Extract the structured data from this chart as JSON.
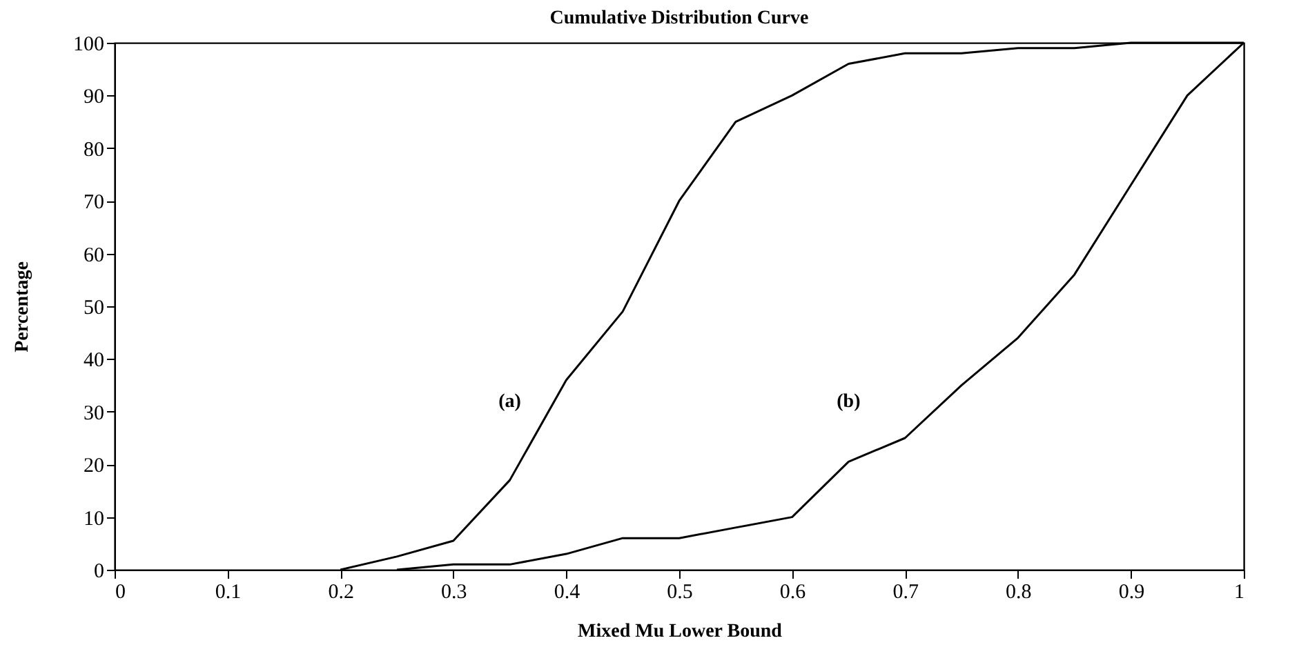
{
  "chart_data": {
    "type": "line",
    "title": "Cumulative Distribution Curve",
    "xlabel": "Mixed Mu Lower Bound",
    "ylabel": "Percentage",
    "series": [
      {
        "color": "#000000",
        "x": [
          0.2,
          0.25,
          0.3,
          0.35,
          0.4,
          0.45,
          0.5,
          0.55,
          0.6,
          0.65,
          0.7,
          0.75,
          0.8,
          0.85,
          0.9,
          0.95,
          1
        ],
        "values": [
          0,
          2.5,
          5.5,
          17,
          36,
          49,
          70,
          85,
          90,
          96,
          98,
          98,
          99,
          99,
          100,
          100,
          100
        ]
      },
      {
        "color": "#000000",
        "x": [
          0.25,
          0.3,
          0.35,
          0.4,
          0.45,
          0.5,
          0.55,
          0.6,
          0.65,
          0.7,
          0.75,
          0.8,
          0.85,
          0.9,
          0.95,
          1
        ],
        "values": [
          0,
          1,
          1,
          3,
          6,
          6,
          8,
          10,
          20.5,
          25,
          35,
          44,
          56,
          73,
          90,
          100
        ]
      }
    ],
    "annotations": [
      "(a)",
      "(b)"
    ],
    "xlim": [
      0,
      1
    ],
    "xticks": [
      0,
      0.1,
      0.2,
      0.3,
      0.4,
      0.5,
      0.6,
      0.7,
      0.8,
      0.9,
      1
    ],
    "ylim": [
      0,
      100
    ],
    "yticks": [
      0,
      10,
      20,
      30,
      40,
      50,
      60,
      70,
      80,
      90,
      100
    ],
    "grid": false,
    "legend": false,
    "marker": "none",
    "line_style": "solid"
  }
}
